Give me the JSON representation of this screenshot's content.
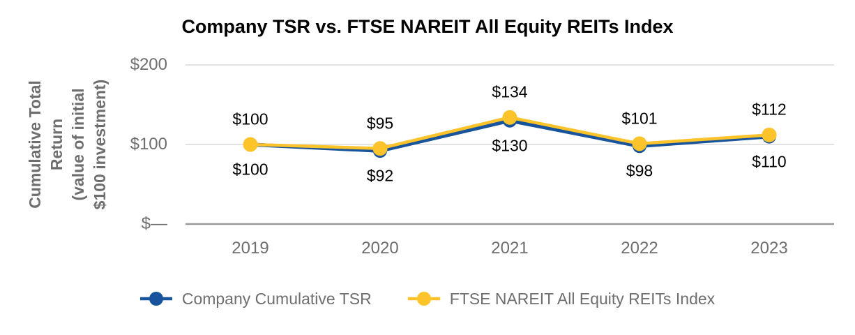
{
  "chart": {
    "title": "Company TSR vs. FTSE NAREIT All Equity REITs Index",
    "y_axis_title": "Cumulative Total\nReturn\n(value of initial\n$100 investment)"
  },
  "chart_data": {
    "type": "line",
    "title": "Company TSR vs. FTSE NAREIT All Equity REITs Index",
    "ylabel": "Cumulative Total Return (value of initial $100 investment)",
    "categories": [
      "2019",
      "2020",
      "2021",
      "2022",
      "2023"
    ],
    "series": [
      {
        "name": "Company Cumulative TSR",
        "color": "#17549B",
        "values": [
          100,
          92,
          130,
          98,
          110
        ],
        "point_labels": [
          "$100",
          "$92",
          "$130",
          "$98",
          "$110"
        ],
        "label_position": "below",
        "marker": "circle"
      },
      {
        "name": "FTSE NAREIT All Equity REITs Index",
        "color": "#FCC32B",
        "values": [
          100,
          95,
          134,
          101,
          112
        ],
        "point_labels": [
          "$100",
          "$95",
          "$134",
          "$101",
          "$112"
        ],
        "label_position": "above",
        "marker": "circle"
      }
    ],
    "yticks": [
      {
        "value": 0,
        "label": "$—"
      },
      {
        "value": 100,
        "label": "$100"
      },
      {
        "value": 200,
        "label": "$200"
      }
    ],
    "ylim": [
      0,
      200
    ],
    "grid": true,
    "legend_position": "bottom",
    "colors": {
      "gridline": "#D9D9D9",
      "axis_line": "#999999",
      "tick_text": "#6E6E6E",
      "data_label_text": "#000000"
    }
  }
}
